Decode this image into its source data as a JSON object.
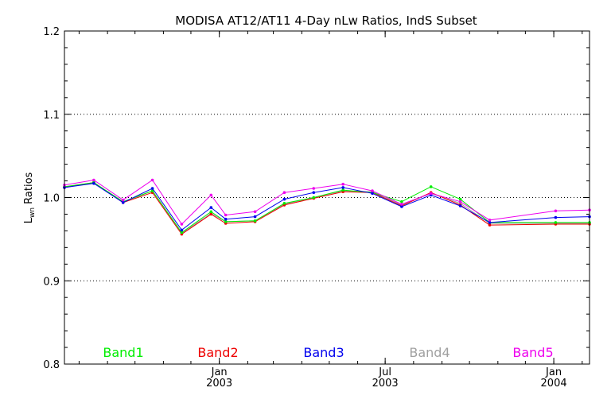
{
  "chart_data": {
    "type": "line",
    "title": "MODISA AT12/AT11 4-Day nLw Ratios, IndS Subset",
    "ylabel": "L",
    "ylabel_sub": "wn",
    "ylabel_rest": " Ratios",
    "ylim": [
      0.8,
      1.2
    ],
    "yticks": [
      "0.8",
      "0.9",
      "1.0",
      "1.1",
      "1.2"
    ],
    "y_gridlines": [
      0.9,
      1.0,
      1.1
    ],
    "x_range": [
      "2002-07-16",
      "2004-02-09"
    ],
    "x_ticks": [
      {
        "date": "2003-01-01",
        "line1": "Jan",
        "line2": "2003"
      },
      {
        "date": "2003-07-01",
        "line1": "Jul",
        "line2": "2003"
      },
      {
        "date": "2004-01-01",
        "line1": "Jan",
        "line2": "2004"
      }
    ],
    "x": [
      "2002-07-16",
      "2002-08-17",
      "2002-09-18",
      "2002-10-20",
      "2002-11-21",
      "2002-12-23",
      "2003-01-08",
      "2003-02-09",
      "2003-03-13",
      "2003-04-14",
      "2003-05-16",
      "2003-06-17",
      "2003-07-19",
      "2003-08-20",
      "2003-09-21",
      "2003-10-23",
      "2004-01-03",
      "2004-02-09"
    ],
    "series": [
      {
        "name": "Band1",
        "color": "#00ee00",
        "values": [
          1.013,
          1.018,
          0.995,
          1.008,
          0.958,
          0.983,
          0.971,
          0.972,
          0.993,
          1.0,
          1.009,
          1.006,
          0.995,
          1.013,
          0.998,
          0.97,
          0.97,
          0.97
        ]
      },
      {
        "name": "Band2",
        "color": "#ee0000",
        "values": [
          1.012,
          1.018,
          0.994,
          1.006,
          0.956,
          0.98,
          0.969,
          0.971,
          0.991,
          0.999,
          1.007,
          1.006,
          0.99,
          1.006,
          0.991,
          0.967,
          0.968,
          0.968
        ]
      },
      {
        "name": "Band3",
        "color": "#0000ee",
        "values": [
          1.012,
          1.017,
          0.994,
          1.011,
          0.961,
          0.988,
          0.974,
          0.977,
          0.998,
          1.006,
          1.012,
          1.005,
          0.989,
          1.003,
          0.99,
          0.97,
          0.976,
          0.977
        ]
      },
      {
        "name": "Band4",
        "color": "#a0a0a0",
        "values": [
          1.012,
          1.018,
          0.994,
          1.008,
          0.957,
          0.981,
          0.971,
          0.972,
          0.992,
          1.0,
          1.008,
          1.007,
          0.991,
          1.005,
          0.993,
          0.969,
          0.969,
          0.969
        ]
      },
      {
        "name": "Band5",
        "color": "#ee00ee",
        "values": [
          1.015,
          1.021,
          0.997,
          1.021,
          0.968,
          1.003,
          0.979,
          0.983,
          1.006,
          1.011,
          1.016,
          1.008,
          0.992,
          1.005,
          0.995,
          0.973,
          0.984,
          0.985
        ]
      }
    ],
    "legend": [
      "Band1",
      "Band2",
      "Band3",
      "Band4",
      "Band5"
    ],
    "legend_position": "bottom-inside"
  }
}
